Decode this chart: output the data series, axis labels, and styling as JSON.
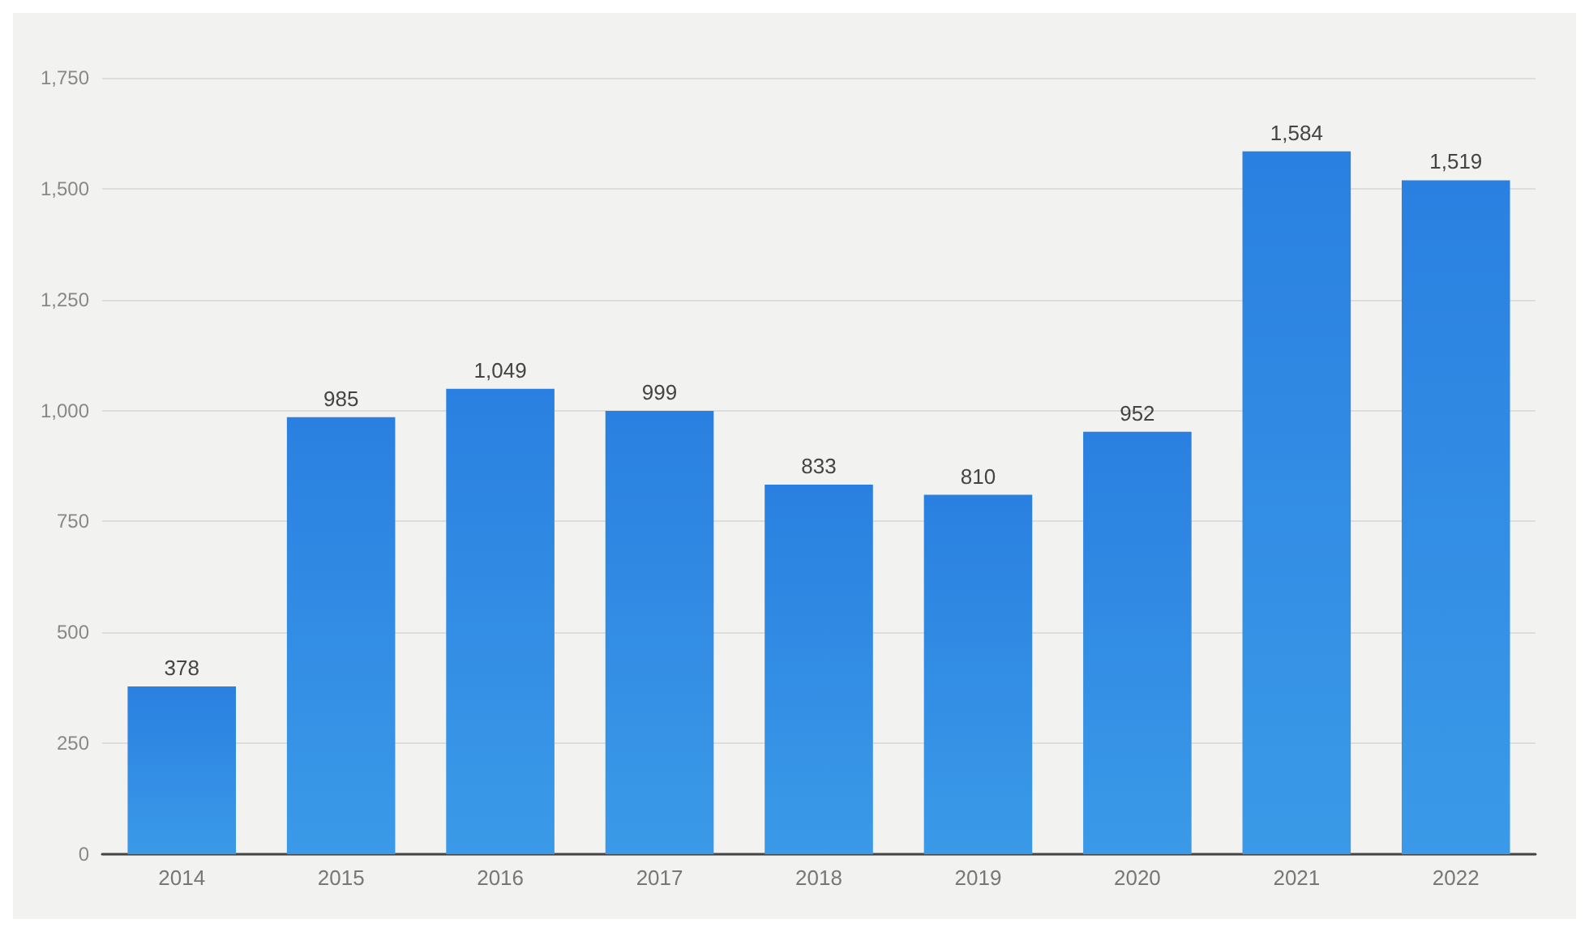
{
  "chart_data": {
    "type": "bar",
    "categories": [
      "2014",
      "2015",
      "2016",
      "2017",
      "2018",
      "2019",
      "2020",
      "2021",
      "2022"
    ],
    "values": [
      378,
      985,
      1049,
      999,
      833,
      810,
      952,
      1584,
      1519
    ],
    "value_labels": [
      "378",
      "985",
      "1,049",
      "999",
      "833",
      "810",
      "952",
      "1,584",
      "1,519"
    ],
    "color": "#2a80e0",
    "ylim": [
      0,
      1750
    ],
    "yticks": [
      0,
      250,
      500,
      750,
      {
        "value": 1000,
        "label": "1,000"
      },
      {
        "value": 1250,
        "label": "1,250"
      },
      {
        "value": 1500,
        "label": "1,500"
      },
      {
        "value": 1750,
        "label": "1,750"
      }
    ],
    "grid": "y"
  }
}
